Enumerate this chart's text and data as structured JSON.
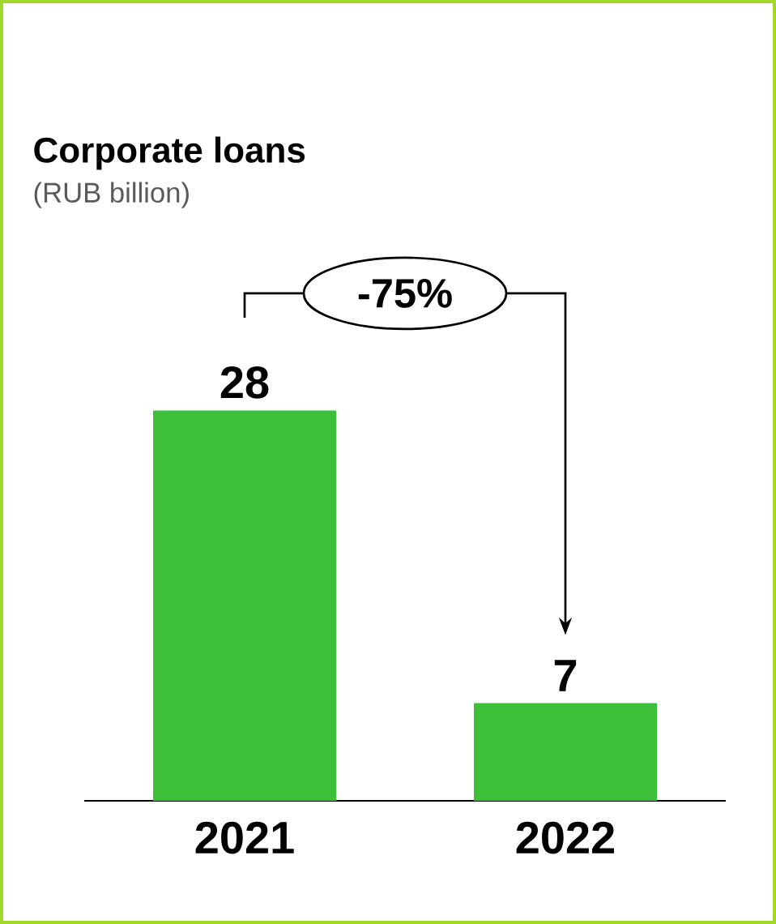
{
  "chart_data": {
    "type": "bar",
    "title": "Corporate loans",
    "subtitle": "(RUB billion)",
    "categories": [
      "2021",
      "2022"
    ],
    "values": [
      28,
      7
    ],
    "color": "#3dbf3a",
    "data_labels": true,
    "annotations": [
      "-75%"
    ]
  }
}
